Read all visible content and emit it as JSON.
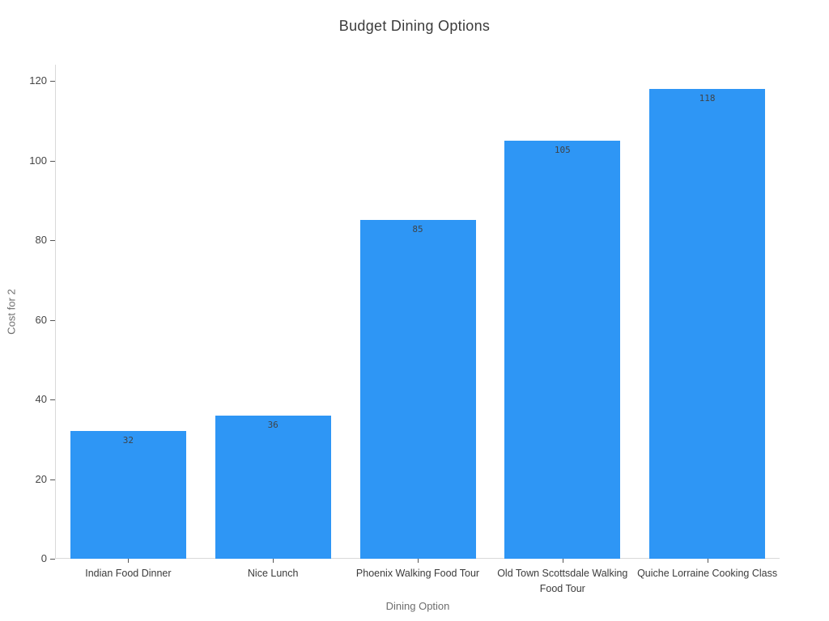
{
  "chart_data": {
    "type": "bar",
    "title": "Budget Dining Options",
    "xlabel": "Dining Option",
    "ylabel": "Cost for 2",
    "categories": [
      "Indian Food Dinner",
      "Nice Lunch",
      "Phoenix Walking Food Tour",
      "Old Town Scottsdale Walking Food Tour",
      "Quiche Lorraine Cooking Class"
    ],
    "values": [
      32,
      36,
      85,
      105,
      118
    ],
    "bar_labels": [
      "32",
      "36",
      "85",
      "105",
      "118"
    ],
    "ylim": [
      0,
      124
    ],
    "yticks": [
      0,
      20,
      40,
      60,
      80,
      100,
      120
    ],
    "grid": false,
    "legend": false,
    "colors": {
      "bar": "#2e96f5",
      "axis_line": "#d9d9d9",
      "tick_mark": "#555555",
      "tick_label": "#454545",
      "axis_title": "#6e6e6e",
      "title": "#3b3b3b",
      "bar_value_label": "#3f4347",
      "background": "#ffffff"
    }
  }
}
